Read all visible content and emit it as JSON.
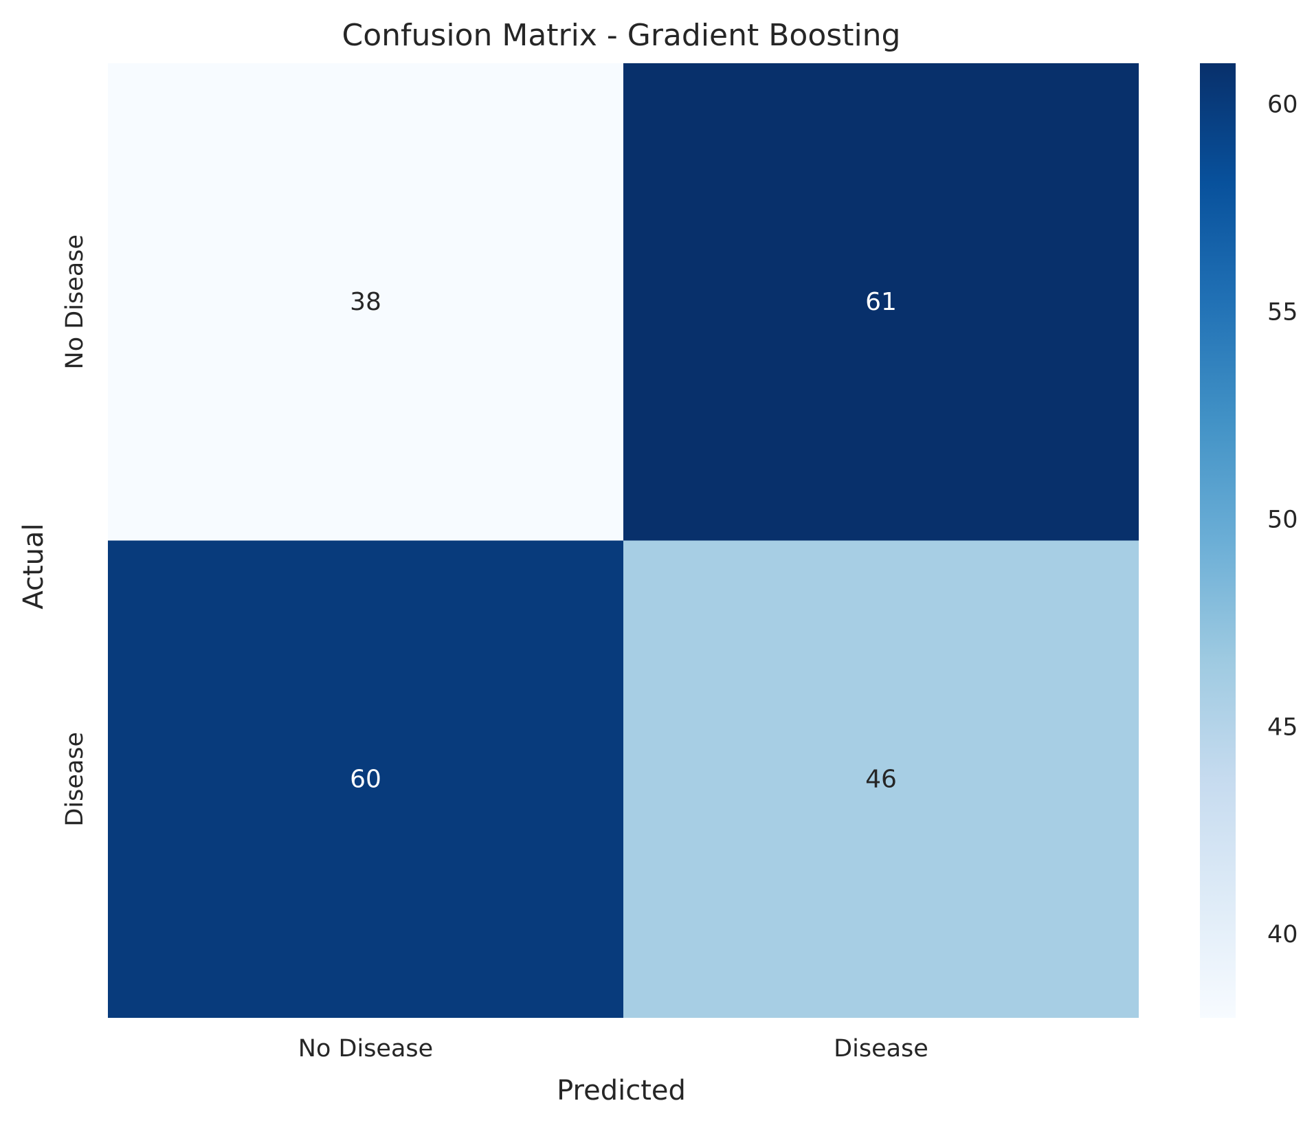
{
  "chart_data": {
    "type": "heatmap",
    "title": "Confusion Matrix - Gradient Boosting",
    "xlabel": "Predicted",
    "ylabel": "Actual",
    "x_categories": [
      "No Disease",
      "Disease"
    ],
    "y_categories": [
      "No Disease",
      "Disease"
    ],
    "values": [
      [
        38,
        61
      ],
      [
        60,
        46
      ]
    ],
    "colormap": "Blues",
    "colorbar": {
      "range": [
        38,
        61
      ],
      "ticks": [
        40,
        45,
        50,
        55,
        60
      ]
    },
    "grid": false,
    "legend": "none"
  }
}
